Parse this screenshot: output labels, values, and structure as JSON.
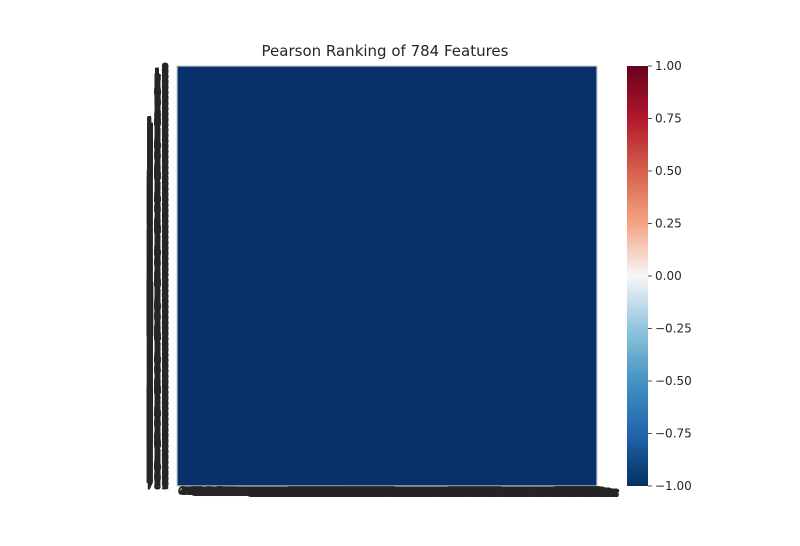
{
  "chart_data": {
    "type": "heatmap",
    "title": "Pearson Ranking of 784 Features",
    "n_features": 784,
    "matrix": "lower-triangle",
    "visible_axis_label": "783",
    "colorbar": {
      "colormap": "RdBu_r",
      "min": -1.0,
      "max": 1.0,
      "ticks": [
        "1.00",
        "0.75",
        "0.50",
        "0.25",
        "0.00",
        "−0.25",
        "−0.50",
        "−0.75",
        "−1.00"
      ],
      "tick_values": [
        1.0,
        0.75,
        0.5,
        0.25,
        0.0,
        -0.25,
        -0.5,
        -0.75,
        -1.0
      ]
    },
    "undefined_feature_indices": [
      0,
      1,
      2,
      3,
      4,
      5,
      6,
      7,
      8,
      9,
      10,
      11,
      12,
      13,
      14,
      15,
      16,
      17,
      18,
      19,
      20,
      21,
      22,
      23,
      24,
      25,
      26,
      27,
      28,
      29,
      30,
      31,
      32,
      33,
      34,
      35,
      36,
      37,
      38,
      39,
      40,
      41,
      42,
      43,
      44,
      45,
      46,
      47,
      48,
      49,
      50,
      51,
      52,
      53,
      54,
      55,
      56,
      57,
      58,
      59,
      60,
      61,
      62,
      63,
      64,
      65,
      66,
      67,
      68,
      69,
      70,
      71,
      72,
      73,
      74,
      75,
      76,
      77,
      78,
      79,
      80,
      81,
      82,
      83,
      84,
      85,
      86,
      87,
      88,
      89,
      90,
      91,
      92,
      93,
      94,
      95,
      96,
      97,
      98,
      99,
      100,
      101,
      102,
      103,
      104,
      105,
      106,
      107,
      108,
      109,
      110,
      111,
      112,
      113,
      114,
      115,
      116,
      117,
      118,
      119,
      120,
      121,
      122,
      123,
      124,
      125,
      126,
      127,
      128,
      129,
      130,
      131,
      132,
      133,
      134,
      135,
      136,
      137,
      138,
      139,
      140,
      141,
      142,
      143,
      144,
      145,
      146,
      147,
      148,
      149,
      150,
      151,
      152,
      153,
      154,
      155,
      156,
      157,
      158,
      159,
      160,
      161,
      162,
      163,
      164,
      165,
      166,
      167,
      168,
      169,
      170,
      171,
      172,
      173,
      174,
      175,
      176,
      177,
      178,
      179,
      180,
      181,
      182,
      183,
      184,
      185,
      186,
      187,
      188,
      189,
      190,
      191,
      192,
      193,
      194,
      195,
      196,
      197,
      198,
      199,
      200,
      201,
      202,
      203,
      204,
      205,
      206,
      207,
      208,
      209,
      210,
      211,
      212,
      213,
      214,
      215,
      216,
      217,
      218,
      219,
      220,
      221,
      222,
      223,
      224,
      225,
      226,
      227,
      228,
      229,
      230,
      231,
      232,
      233,
      234,
      235,
      236,
      237,
      238,
      239,
      240,
      241,
      242,
      243,
      244,
      245,
      246,
      247,
      248,
      249,
      250,
      251,
      252,
      253,
      254,
      255,
      256,
      257,
      258,
      259,
      260,
      261,
      262,
      263,
      264,
      265,
      266,
      267,
      268,
      269,
      270,
      271,
      272,
      273,
      274,
      275,
      276,
      277,
      278,
      279,
      280,
      281,
      282,
      283,
      284,
      285,
      286,
      287,
      288,
      289,
      290,
      291,
      292,
      293,
      294,
      295,
      296,
      297,
      298,
      299,
      300,
      301,
      302,
      303,
      304,
      305,
      306,
      307,
      308,
      309,
      310,
      311,
      312,
      313,
      314,
      315,
      316,
      317,
      318,
      319,
      320,
      321,
      322,
      323,
      324,
      325,
      326,
      327,
      328,
      329,
      330,
      331,
      332,
      333,
      334,
      335,
      336,
      337,
      338,
      339,
      340,
      341,
      342,
      343,
      344,
      345,
      346,
      347,
      348,
      349,
      350,
      351,
      352,
      353,
      354,
      355,
      356,
      357,
      358,
      359,
      360,
      361,
      362,
      363,
      364,
      365,
      366,
      367,
      368,
      369,
      370,
      371,
      372,
      373,
      374,
      375,
      376,
      377,
      378,
      379,
      380,
      381,
      382,
      383,
      384,
      385,
      386,
      387,
      388,
      389,
      390,
      391,
      392,
      393,
      394,
      395,
      396,
      397,
      398,
      399,
      400,
      401,
      402,
      403,
      404,
      405,
      406,
      407,
      408,
      409,
      410,
      411,
      412,
      413,
      414,
      415,
      416,
      417,
      418,
      419,
      420,
      421,
      422,
      423,
      424,
      425,
      426,
      427,
      428,
      429,
      430,
      431,
      432,
      433,
      434,
      435,
      436,
      437,
      438,
      439,
      440,
      441,
      442,
      443,
      444,
      445,
      446,
      447,
      448,
      449,
      450,
      451,
      452,
      453,
      454,
      455,
      456,
      457,
      458,
      459,
      460,
      461,
      462,
      463,
      464,
      465,
      466,
      467,
      468,
      469,
      470,
      471,
      472,
      473,
      474,
      475,
      476,
      477,
      478,
      479,
      480,
      481,
      482,
      483,
      484,
      485,
      486,
      487,
      488,
      489,
      490,
      491,
      492,
      493,
      494,
      495,
      496,
      497,
      498,
      499,
      500,
      501,
      502,
      503,
      504,
      505,
      506,
      507,
      508,
      509,
      510,
      511,
      512,
      513,
      514,
      515,
      516,
      517,
      518,
      519,
      520,
      521,
      522,
      523,
      524,
      525,
      526,
      527,
      528,
      529,
      530,
      531,
      532,
      533,
      534,
      535,
      536,
      537,
      538,
      539,
      540,
      541,
      542,
      543,
      544,
      545,
      546,
      547,
      548,
      549,
      550,
      551,
      552,
      553,
      554,
      555,
      556,
      557,
      558,
      559,
      560,
      561,
      562,
      563,
      564,
      565,
      566,
      567,
      568,
      569,
      570,
      571,
      572,
      573,
      574,
      575,
      576,
      577,
      578,
      579,
      580,
      581,
      582,
      583,
      584,
      585,
      586,
      587,
      588,
      589,
      590,
      591,
      592,
      593,
      594,
      595,
      596,
      597,
      598,
      599,
      600,
      601,
      602,
      603,
      604,
      605,
      606,
      607,
      608,
      609,
      610,
      611,
      612,
      613,
      614,
      615,
      616,
      617,
      618,
      619,
      620,
      621,
      622,
      623,
      624,
      625,
      626,
      627,
      628,
      629,
      630,
      631,
      632,
      633,
      634,
      635,
      636,
      637,
      638,
      639,
      640,
      641,
      642,
      643,
      644,
      645,
      646,
      647,
      648,
      649,
      650,
      651,
      652,
      653,
      654,
      655,
      656,
      657,
      658,
      659,
      660,
      661,
      662,
      663,
      664,
      665,
      666,
      667,
      668,
      669,
      670,
      671,
      672,
      673,
      674,
      675,
      676,
      677,
      678,
      679,
      680,
      681,
      682,
      683,
      684,
      685,
      686,
      687,
      688,
      689,
      690,
      691,
      692,
      693,
      694,
      695,
      696,
      697,
      698,
      699,
      700,
      701,
      702,
      703,
      704,
      705,
      706,
      707,
      708,
      709,
      710,
      711,
      712,
      713,
      714,
      715,
      716,
      717,
      718,
      719,
      720,
      721,
      722,
      723,
      724,
      725,
      726,
      727,
      728,
      729,
      730,
      731,
      732,
      733,
      734,
      735,
      736,
      737,
      738,
      739,
      740,
      741,
      742,
      743,
      744,
      745,
      746,
      747,
      748,
      749,
      750,
      751,
      752,
      753,
      754,
      755,
      756,
      757,
      758,
      759,
      760,
      761,
      762,
      763,
      764,
      765,
      766,
      767,
      768,
      769,
      770,
      771,
      772,
      773,
      774,
      775,
      776,
      777,
      778,
      779,
      780,
      781,
      782,
      783
    ],
    "undefined_color": "#08306b",
    "positive_diagonal_color": "#d6604d",
    "background_color": "#f4f6f8",
    "frame_color": "#cccccc"
  }
}
